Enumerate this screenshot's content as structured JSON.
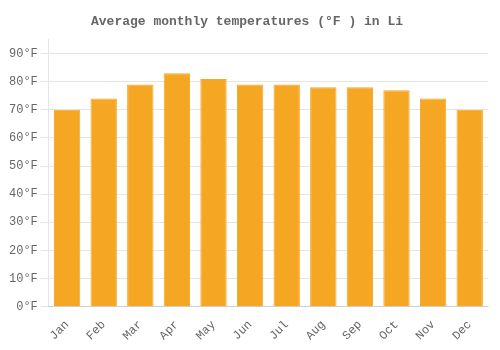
{
  "chart_data": {
    "type": "bar",
    "title": "Average monthly temperatures (°F ) in Li",
    "categories": [
      "Jan",
      "Feb",
      "Mar",
      "Apr",
      "May",
      "Jun",
      "Jul",
      "Aug",
      "Sep",
      "Oct",
      "Nov",
      "Dec"
    ],
    "values": [
      70,
      74,
      79,
      83,
      81,
      79,
      79,
      78,
      78,
      77,
      74,
      70
    ],
    "color": "#F5A623",
    "ylim": [
      0,
      95
    ],
    "yticks": [
      {
        "value": 0,
        "label": "0°F"
      },
      {
        "value": 10,
        "label": "10°F"
      },
      {
        "value": 20,
        "label": "20°F"
      },
      {
        "value": 30,
        "label": "30°F"
      },
      {
        "value": 40,
        "label": "40°F"
      },
      {
        "value": 50,
        "label": "50°F"
      },
      {
        "value": 60,
        "label": "60°F"
      },
      {
        "value": 70,
        "label": "70°F"
      },
      {
        "value": 80,
        "label": "80°F"
      },
      {
        "value": 90,
        "label": "90°F"
      }
    ],
    "grid": true
  }
}
